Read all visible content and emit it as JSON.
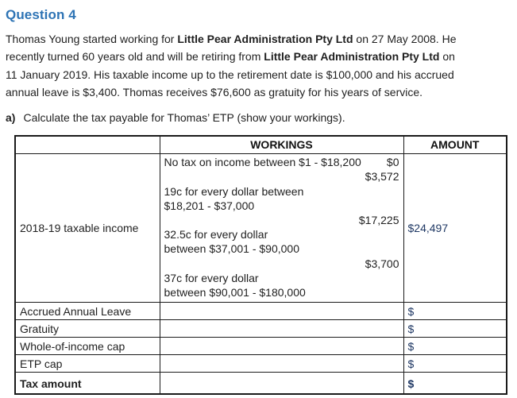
{
  "title": "Question 4",
  "intro": {
    "lines": [
      {
        "segments": [
          {
            "text": "Thomas Young started working for "
          },
          {
            "text": "Little Pear Administration Pty Ltd",
            "bold": true
          },
          {
            "text": " on 27 May 2008. He"
          }
        ]
      },
      {
        "segments": [
          {
            "text": "recently turned 60 years old and will be retiring from "
          },
          {
            "text": "Little Pear Administration Pty Ltd",
            "bold": true
          },
          {
            "text": " on"
          }
        ]
      },
      {
        "segments": [
          {
            "text": "11 January 2019. His taxable income up to the retirement date is $100,000 and his accrued"
          }
        ]
      },
      {
        "segments": [
          {
            "text": "annual leave is $3,400. Thomas receives $76,600 as gratuity for his years of service."
          }
        ]
      }
    ]
  },
  "task": {
    "label": "a)",
    "text": "Calculate the tax payable for Thomas’ ETP (show your workings)."
  },
  "table": {
    "headers": {
      "col1": "",
      "workings": "WORKINGS",
      "amount": "AMOUNT"
    },
    "main_row": {
      "label": "2018-19 taxable income",
      "workings": [
        {
          "text": "No tax on income between $1 - $18,200",
          "value": "$0"
        },
        {
          "value": "$3,572"
        },
        {
          "text": "19c for every dollar between"
        },
        {
          "text": "$18,201 - $37,000"
        },
        {
          "value": "$17,225"
        },
        {
          "text": "32.5c for every dollar"
        },
        {
          "text": "between $37,001 - $90,000"
        },
        {
          "value": "$3,700"
        },
        {
          "text": "37c for every dollar"
        },
        {
          "text": "between $90,001 - $180,000"
        }
      ],
      "amount": "$24,497"
    },
    "rows": [
      {
        "label": "Accrued Annual Leave",
        "amount": "$"
      },
      {
        "label": "Gratuity",
        "amount": "$"
      },
      {
        "label": "Whole-of-income cap",
        "amount": "$"
      },
      {
        "label": "ETP cap",
        "amount": "$"
      },
      {
        "label": "Tax amount",
        "amount": "$"
      }
    ]
  },
  "colors": {
    "heading_blue": "#2E74B5",
    "amount_navy": "#1F3864"
  }
}
